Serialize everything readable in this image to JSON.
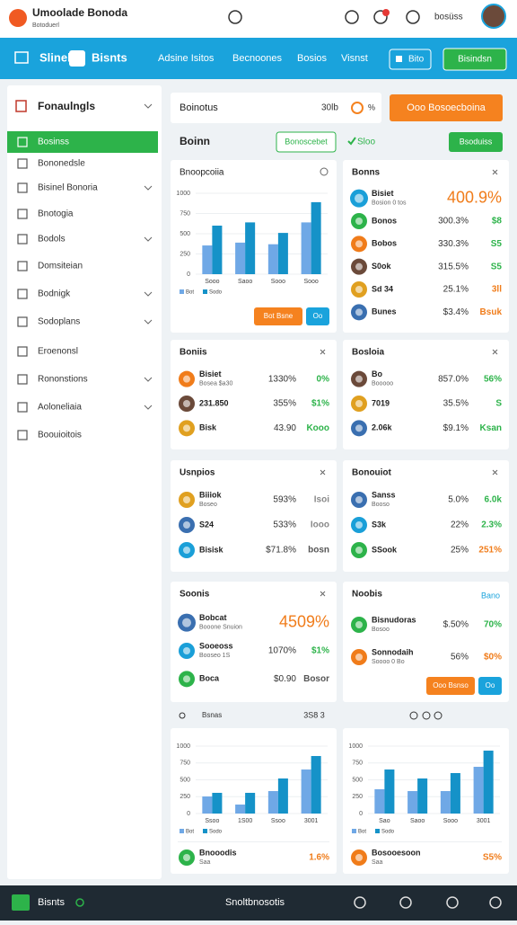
{
  "header": {
    "title": "Umoolade Bonoda",
    "subtitle": "Botoduerl",
    "user": "bosüss"
  },
  "nav": {
    "home": "Slinel",
    "brand": "Bisnts",
    "items": [
      "Adsine Isitos",
      "Becnoones",
      "Bosios",
      "Visnst"
    ],
    "button": "Bito",
    "action": "Bisindsn"
  },
  "sidebar": {
    "title": "Fonaulngls",
    "items": [
      "Bosinss",
      "Bononedsle",
      "Bisinel Bonoria",
      "Bnotogia",
      "Bodols",
      "Domsiteian",
      "Bodnigk",
      "Sodoplans",
      "Eroenonsl",
      "Rononstions",
      "Aoloneliaia",
      "Boouioitois"
    ]
  },
  "toolbar": {
    "search": "Boinotus",
    "count": "30lb",
    "badge": "%",
    "action": "Ooo Bosoecboina"
  },
  "subbar": {
    "title": "Boinn",
    "outline_button": "Bonoscebet",
    "status": "Sloo",
    "action": "Bsoduiss"
  },
  "chart_data": [
    {
      "type": "bar",
      "title": "Bnoopcoiia",
      "categories": [
        "Sooo",
        "Saoo",
        "Sooo",
        "Sooo"
      ],
      "series": [
        {
          "name": "Bot",
          "color": "#6fa8e6",
          "values": [
            355,
            390,
            370,
            640
          ]
        },
        {
          "name": "Sodo",
          "color": "#1592c8",
          "values": [
            600,
            640,
            510,
            890
          ]
        }
      ],
      "ylim": [
        0,
        1000
      ],
      "yticks": [
        0,
        250,
        500,
        750,
        1000
      ],
      "buttons": [
        {
          "label": "Bot Bsne",
          "color": "#f5821f"
        },
        {
          "label": "Oo",
          "color": "#1aa3dc"
        }
      ]
    },
    {
      "type": "bar",
      "categories": [
        "Ssoo",
        "1S00",
        "Ssoo",
        "3001"
      ],
      "series": [
        {
          "name": "Bot",
          "color": "#6fa8e6",
          "values": [
            253,
            133,
            333,
            653
          ]
        },
        {
          "name": "Sodo",
          "color": "#1592c8",
          "values": [
            307,
            307,
            520,
            853
          ]
        }
      ],
      "ylim": [
        0,
        1000
      ],
      "yticks": [
        0,
        250,
        500,
        750,
        1000
      ],
      "footer": {
        "name": "Bnooodis",
        "sub": "Saa",
        "change": "1.6%",
        "color": "#f07c1a"
      }
    },
    {
      "type": "bar",
      "categories": [
        "Sao",
        "Saoo",
        "Sooo",
        "3001"
      ],
      "series": [
        {
          "name": "Bot",
          "color": "#6fa8e6",
          "values": [
            360,
            333,
            333,
            693
          ]
        },
        {
          "name": "Sodo",
          "color": "#1592c8",
          "values": [
            653,
            520,
            600,
            933
          ]
        }
      ],
      "ylim": [
        0,
        1000
      ],
      "yticks": [
        0,
        250,
        500,
        750,
        1000
      ],
      "footer": {
        "name": "Bosooesoon",
        "sub": "Saa",
        "change": "S5%",
        "color": "#f07c1a"
      }
    }
  ],
  "cards": [
    {
      "title": "Bonns",
      "headline": {
        "name": "Bisiet",
        "sub": "Bosion 0 tos",
        "value": "400.9%",
        "color": "#f07c1a"
      },
      "rows": [
        {
          "name": "Bonos",
          "value": "300.3%",
          "change": "$8"
        },
        {
          "name": "Bobos",
          "value": "330.3%",
          "change": "S5"
        },
        {
          "name": "S0ok",
          "value": "315.5%",
          "change": "S5"
        },
        {
          "name": "Sd 34",
          "value": "25.1%",
          "change": "3ll",
          "color": "#f07c1a"
        },
        {
          "name": "Bunes",
          "value": "$3.4%",
          "change": "Bsuk",
          "color": "#f07c1a"
        }
      ]
    },
    {
      "title": "Boniis",
      "rows": [
        {
          "name": "Bisiet",
          "sub": "Bosea $a30",
          "value": "1330%",
          "change": "0%"
        },
        {
          "name": "231.850",
          "value": "355%",
          "change": "$1%"
        },
        {
          "name": "Bisk",
          "value": "43.90",
          "change": "Kooo"
        }
      ]
    },
    {
      "title": "Bosloia",
      "rows": [
        {
          "name": "Bo",
          "sub": "Booooo",
          "value": "857.0%",
          "change": "56%"
        },
        {
          "name": "7019",
          "value": "35.5%",
          "change": "S"
        },
        {
          "name": "2.06k",
          "value": "$9.1%",
          "change": "Ksan"
        }
      ]
    },
    {
      "title": "Usnpios",
      "rows": [
        {
          "name": "Biiiok",
          "sub": "Boseo",
          "value": "593%",
          "change": "Isoi",
          "color": "#888888"
        },
        {
          "name": "S24",
          "value": "533%",
          "change": "Iooo",
          "color": "#888888"
        },
        {
          "name": "Bisisk",
          "value": "$71.8%",
          "change": "bosn",
          "color": "#555555"
        }
      ]
    },
    {
      "title": "Bonouiot",
      "rows": [
        {
          "name": "Sanss",
          "sub": "Booso",
          "value": "5.0%",
          "change": "6.0k"
        },
        {
          "name": "S3k",
          "value": "22%",
          "change": "2.3%"
        },
        {
          "name": "SSook",
          "value": "25%",
          "change": "251%",
          "color": "#f07c1a"
        }
      ]
    },
    {
      "title": "Soonis",
      "headline": {
        "name": "Bobcat",
        "sub": "Booone Snuion",
        "value": "4509%",
        "color": "#f07c1a"
      },
      "rows": [
        {
          "name": "Sooeoss",
          "sub": "Booseo 1S",
          "value": "1070%",
          "change": "$1%"
        },
        {
          "name": "Boca",
          "value": "$0.90",
          "change": "Bosor",
          "color": "#555555"
        }
      ]
    },
    {
      "title": "Noobis",
      "link": "Bano",
      "rows": [
        {
          "name": "Bisnudoras",
          "sub": "Bosoo",
          "value": "$.50%",
          "change": "70%"
        },
        {
          "name": "Sonnodaih",
          "sub": "Soooo 0 Bo",
          "value": "56%",
          "change": "$0%",
          "color": "#f07c1a"
        }
      ],
      "buttons": [
        {
          "label": "Ooo Bsnso",
          "color": "#f5821f"
        },
        {
          "label": "Oo",
          "color": "#1aa3dc"
        }
      ]
    }
  ],
  "pager": {
    "label": "Bsnas",
    "info": "3S8 3"
  },
  "footer": {
    "brand": "Bisnts",
    "center": "Snoltbnosotis"
  }
}
